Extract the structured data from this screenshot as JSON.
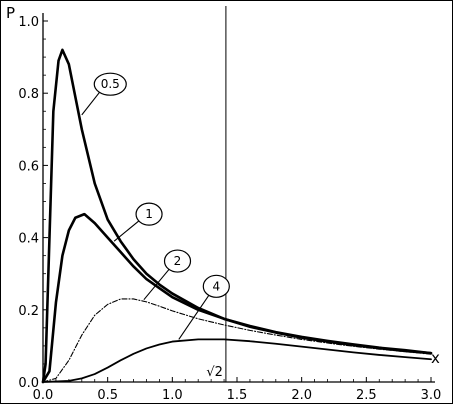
{
  "chart_data": {
    "type": "line",
    "title": "",
    "xlabel": "x",
    "ylabel": "P",
    "xlim": [
      0,
      3.0
    ],
    "ylim": [
      0,
      1.0
    ],
    "x_ticks": [
      "0.0",
      "0.5",
      "1.0",
      "1.5",
      "2.0",
      "2.5",
      "3.0"
    ],
    "y_ticks": [
      "0.0",
      "0.2",
      "0.4",
      "0.6",
      "0.8",
      "1.0"
    ],
    "reference_line": {
      "x": 1.41421,
      "label": "√2"
    },
    "series": [
      {
        "name": "0.5",
        "style": "thick",
        "points": [
          [
            0.0,
            0.0
          ],
          [
            0.02,
            0.05
          ],
          [
            0.05,
            0.4
          ],
          [
            0.08,
            0.75
          ],
          [
            0.12,
            0.89
          ],
          [
            0.15,
            0.92
          ],
          [
            0.2,
            0.88
          ],
          [
            0.3,
            0.7
          ],
          [
            0.4,
            0.55
          ],
          [
            0.5,
            0.45
          ],
          [
            0.6,
            0.39
          ],
          [
            0.7,
            0.34
          ],
          [
            0.8,
            0.3
          ],
          [
            0.9,
            0.27
          ],
          [
            1.0,
            0.245
          ],
          [
            1.2,
            0.205
          ],
          [
            1.4,
            0.175
          ],
          [
            1.6,
            0.155
          ],
          [
            1.8,
            0.138
          ],
          [
            2.0,
            0.125
          ],
          [
            2.2,
            0.114
          ],
          [
            2.4,
            0.104
          ],
          [
            2.6,
            0.095
          ],
          [
            2.8,
            0.088
          ],
          [
            3.0,
            0.08
          ]
        ]
      },
      {
        "name": "1",
        "style": "thick",
        "points": [
          [
            0.0,
            0.0
          ],
          [
            0.05,
            0.03
          ],
          [
            0.1,
            0.22
          ],
          [
            0.15,
            0.35
          ],
          [
            0.2,
            0.42
          ],
          [
            0.25,
            0.455
          ],
          [
            0.32,
            0.465
          ],
          [
            0.4,
            0.44
          ],
          [
            0.5,
            0.4
          ],
          [
            0.6,
            0.36
          ],
          [
            0.7,
            0.32
          ],
          [
            0.8,
            0.285
          ],
          [
            0.9,
            0.26
          ],
          [
            1.0,
            0.235
          ],
          [
            1.2,
            0.2
          ],
          [
            1.4,
            0.175
          ],
          [
            1.6,
            0.153
          ],
          [
            1.8,
            0.137
          ],
          [
            2.0,
            0.123
          ],
          [
            2.2,
            0.112
          ],
          [
            2.4,
            0.102
          ],
          [
            2.6,
            0.094
          ],
          [
            2.8,
            0.086
          ],
          [
            3.0,
            0.08
          ]
        ]
      },
      {
        "name": "2",
        "style": "dash-dot",
        "points": [
          [
            0.0,
            0.0
          ],
          [
            0.1,
            0.01
          ],
          [
            0.2,
            0.06
          ],
          [
            0.3,
            0.13
          ],
          [
            0.4,
            0.185
          ],
          [
            0.5,
            0.215
          ],
          [
            0.6,
            0.23
          ],
          [
            0.7,
            0.23
          ],
          [
            0.8,
            0.222
          ],
          [
            0.9,
            0.21
          ],
          [
            1.0,
            0.197
          ],
          [
            1.2,
            0.175
          ],
          [
            1.4,
            0.158
          ],
          [
            1.6,
            0.143
          ],
          [
            1.8,
            0.13
          ],
          [
            2.0,
            0.118
          ],
          [
            2.2,
            0.108
          ],
          [
            2.4,
            0.099
          ],
          [
            2.6,
            0.091
          ],
          [
            2.8,
            0.084
          ],
          [
            3.0,
            0.077
          ]
        ]
      },
      {
        "name": "4",
        "style": "medium",
        "points": [
          [
            0.0,
            0.0
          ],
          [
            0.2,
            0.003
          ],
          [
            0.3,
            0.01
          ],
          [
            0.4,
            0.022
          ],
          [
            0.5,
            0.04
          ],
          [
            0.6,
            0.06
          ],
          [
            0.7,
            0.078
          ],
          [
            0.8,
            0.093
          ],
          [
            0.9,
            0.104
          ],
          [
            1.0,
            0.112
          ],
          [
            1.2,
            0.118
          ],
          [
            1.4,
            0.118
          ],
          [
            1.6,
            0.113
          ],
          [
            1.8,
            0.106
          ],
          [
            2.0,
            0.098
          ],
          [
            2.2,
            0.09
          ],
          [
            2.4,
            0.082
          ],
          [
            2.6,
            0.075
          ],
          [
            2.8,
            0.069
          ],
          [
            3.0,
            0.063
          ]
        ]
      }
    ],
    "annotations": [
      {
        "text": "0.5",
        "series": "0.5",
        "label_at": [
          0.52,
          0.825
        ],
        "points_to": [
          0.3,
          0.74
        ]
      },
      {
        "text": "1",
        "series": "1",
        "label_at": [
          0.82,
          0.465
        ],
        "points_to": [
          0.55,
          0.39
        ]
      },
      {
        "text": "2",
        "series": "2",
        "label_at": [
          1.04,
          0.335
        ],
        "points_to": [
          0.78,
          0.228
        ]
      },
      {
        "text": "4",
        "series": "4",
        "label_at": [
          1.34,
          0.265
        ],
        "points_to": [
          1.05,
          0.118
        ]
      }
    ],
    "grid": false,
    "legend": "none"
  }
}
